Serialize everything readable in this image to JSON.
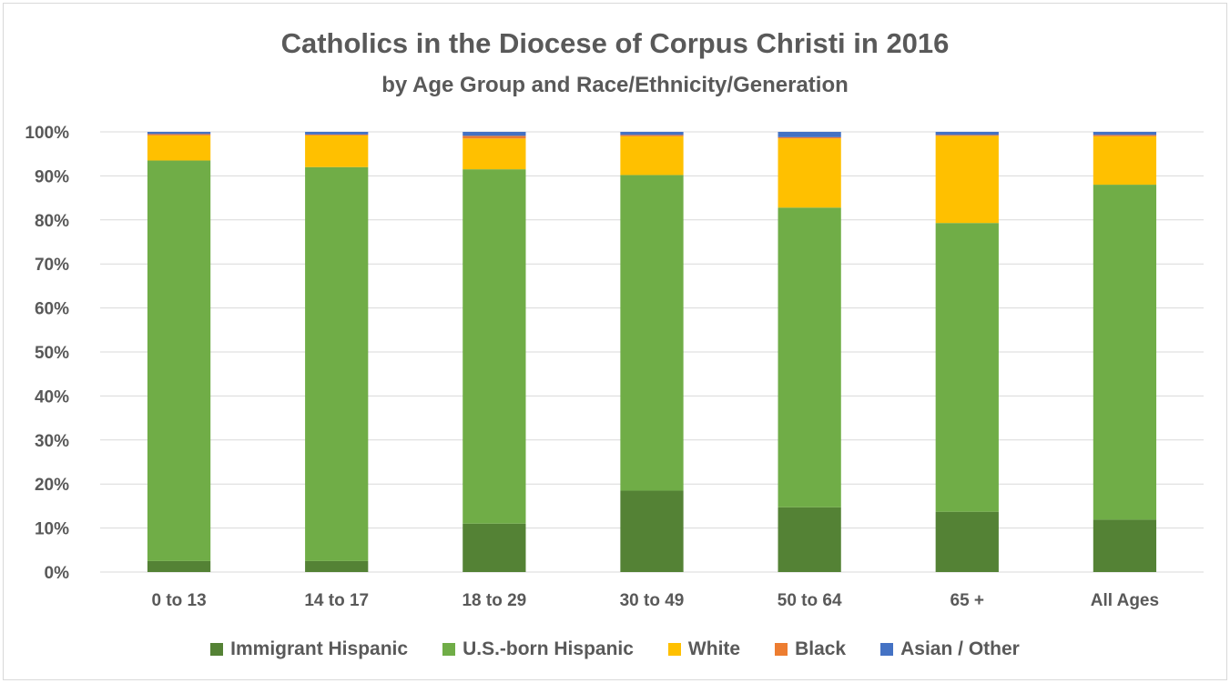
{
  "chart_data": {
    "type": "bar",
    "stacked": true,
    "title": "Catholics in the Diocese of Corpus Christi in 2016",
    "subtitle": "by Age Group and Race/Ethnicity/Generation",
    "xlabel": "",
    "ylabel": "",
    "ylim": [
      0,
      100
    ],
    "yticks": [
      "0%",
      "10%",
      "20%",
      "30%",
      "40%",
      "50%",
      "60%",
      "70%",
      "80%",
      "90%",
      "100%"
    ],
    "grid": true,
    "legend_position": "bottom",
    "categories": [
      "0 to 13",
      "14 to 17",
      "18 to 29",
      "30 to 49",
      "50 to 64",
      "65 +",
      "All Ages"
    ],
    "series": [
      {
        "name": "Immigrant Hispanic",
        "color": "#548235",
        "values": [
          2.5,
          2.5,
          11,
          18.5,
          14.7,
          13.7,
          11.9
        ]
      },
      {
        "name": "U.S.-born Hispanic",
        "color": "#70ad47",
        "values": [
          91,
          89.5,
          80.5,
          71.7,
          68.1,
          65.6,
          76.1
        ]
      },
      {
        "name": "White",
        "color": "#ffc000",
        "values": [
          5.7,
          7.2,
          7,
          8.8,
          15.7,
          19.8,
          11
        ]
      },
      {
        "name": "Black",
        "color": "#ed7d31",
        "values": [
          0.3,
          0.2,
          0.6,
          0.3,
          0.3,
          0.2,
          0.3
        ]
      },
      {
        "name": "Asian / Other",
        "color": "#4472c4",
        "values": [
          0.5,
          0.6,
          0.9,
          0.7,
          1.2,
          0.7,
          0.7
        ]
      }
    ]
  }
}
